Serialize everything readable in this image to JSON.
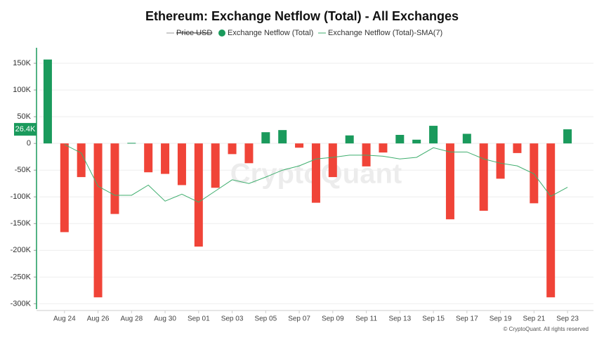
{
  "chart_data": {
    "type": "bar",
    "title": "Ethereum: Exchange Netflow (Total) - All Exchanges",
    "watermark": "CryptoQuant",
    "footer": "© CryptoQuant. All rights reserved",
    "categories": [
      null,
      "Aug 24",
      null,
      "Aug 26",
      null,
      "Aug 28",
      null,
      "Aug 30",
      null,
      "Sep 01",
      null,
      "Sep 03",
      null,
      "Sep 05",
      null,
      "Sep 07",
      null,
      "Sep 09",
      null,
      "Sep 11",
      null,
      "Sep 13",
      null,
      "Sep 15",
      null,
      "Sep 17",
      null,
      "Sep 19",
      null,
      "Sep 21",
      null,
      "Sep 23"
    ],
    "hidden_series": {
      "name": "Price USD",
      "color": "#999999"
    },
    "series": [
      {
        "name": "Exchange Netflow (Total)",
        "color": "#1a9a5c",
        "negative_color": "#f04438",
        "values": [
          157,
          -166,
          -63,
          -288,
          -132,
          1,
          -54,
          -57,
          -78,
          -193,
          -83,
          -20,
          -37,
          21,
          25,
          -8,
          -111,
          -63,
          15,
          -43,
          -17,
          16,
          7,
          33,
          -142,
          18,
          -126,
          -66,
          -18,
          -112,
          -288,
          26.4
        ]
      },
      {
        "name": "Exchange Netflow (Total)-SMA(7)",
        "color": "#3fae6e",
        "values": [
          null,
          -2,
          -18,
          -80,
          -97,
          -97,
          -78,
          -108,
          -95,
          -110,
          -89,
          -68,
          -75,
          -63,
          -50,
          -42,
          -29,
          -26,
          -22,
          -22,
          -24,
          -29,
          -26,
          -8,
          -16,
          -16,
          -29,
          -37,
          -42,
          -57,
          -99,
          -82
        ]
      }
    ],
    "latest_label": {
      "value": 26.4,
      "label": "26.4K"
    },
    "ylim": [
      -310,
      179
    ],
    "yticks": [
      {
        "value": -300,
        "label": "-300K"
      },
      {
        "value": -250,
        "label": "-250K"
      },
      {
        "value": -200,
        "label": "-200K"
      },
      {
        "value": -150,
        "label": "-150K"
      },
      {
        "value": -100,
        "label": "-100K"
      },
      {
        "value": -50,
        "label": "-50K"
      },
      0,
      {
        "value": 50,
        "label": "50K"
      },
      {
        "value": 100,
        "label": "100K"
      },
      {
        "value": 150,
        "label": "150K"
      }
    ],
    "grid": true
  }
}
